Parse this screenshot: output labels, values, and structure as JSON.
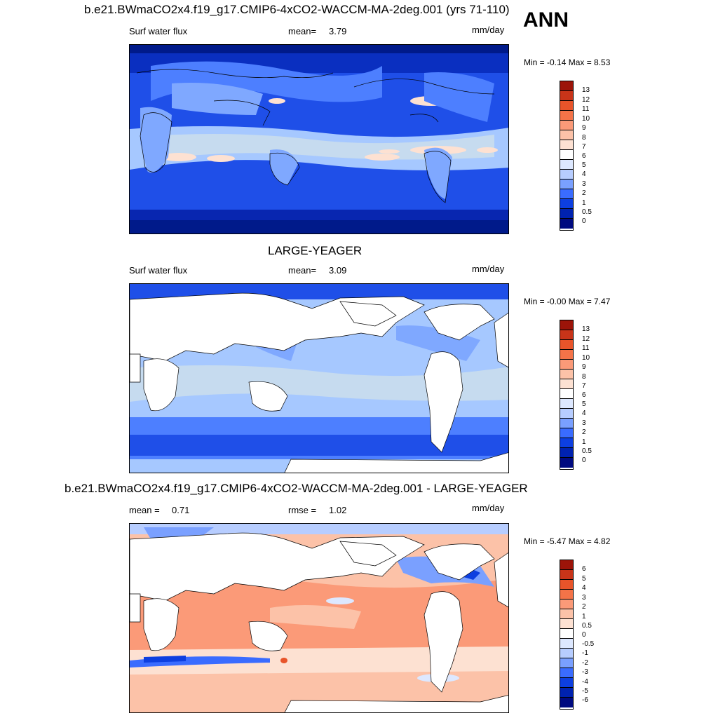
{
  "season": "ANN",
  "colors": {
    "pos_scale": [
      "#f7fbff",
      "#ffffff",
      "#e0ecff",
      "#c6dbef",
      "#a6c8ff",
      "#7fa8ff",
      "#4d7fff",
      "#2255ee",
      "#0a3bd6",
      "#002aa8",
      "#000a80"
    ],
    "diff_scale": [
      "#000a80",
      "#0022b0",
      "#0d3fe0",
      "#3a6cff",
      "#7aa0ff",
      "#b7cdff",
      "#dde8ff",
      "#ffffff",
      "#fde1d2",
      "#fcc2a8",
      "#fb9a78",
      "#f47348",
      "#e8542a",
      "#c83419",
      "#9c1409"
    ]
  },
  "panel1": {
    "title": "b.e21.BWmaCO2x4.f19_g17.CMIP6-4xCO2-WACCM-MA-2deg.001 (yrs 71-110)",
    "left_label": "Surf water flux",
    "mean_label": "mean=",
    "mean_value": "3.79",
    "units": "mm/day",
    "minmax": "Min =  -0.14 Max =   8.53",
    "colorbar_labels": [
      "13",
      "12",
      "11",
      "10",
      "9",
      "8",
      "7",
      "6",
      "5",
      "4",
      "3",
      "2",
      "1",
      "0.5",
      "0"
    ]
  },
  "panel2": {
    "title": "LARGE-YEAGER",
    "left_label": "Surf water flux",
    "mean_label": "mean=",
    "mean_value": "3.09",
    "units": "mm/day",
    "minmax": "Min =  -0.00 Max =   7.47",
    "colorbar_labels": [
      "13",
      "12",
      "11",
      "10",
      "9",
      "8",
      "7",
      "6",
      "5",
      "4",
      "3",
      "2",
      "1",
      "0.5",
      "0"
    ]
  },
  "panel3": {
    "title": "b.e21.BWmaCO2x4.f19_g17.CMIP6-4xCO2-WACCM-MA-2deg.001 - LARGE-YEAGER",
    "mean_label": "mean =",
    "mean_value": "0.71",
    "rmse_label": "rmse =",
    "rmse_value": "1.02",
    "units": "mm/day",
    "minmax": "Min =  -5.47 Max =   4.82",
    "colorbar_labels": [
      "6",
      "5",
      "4",
      "3",
      "2",
      "1",
      "0.5",
      "0",
      "-0.5",
      "-1",
      "-2",
      "-3",
      "-4",
      "-5",
      "-6"
    ]
  }
}
